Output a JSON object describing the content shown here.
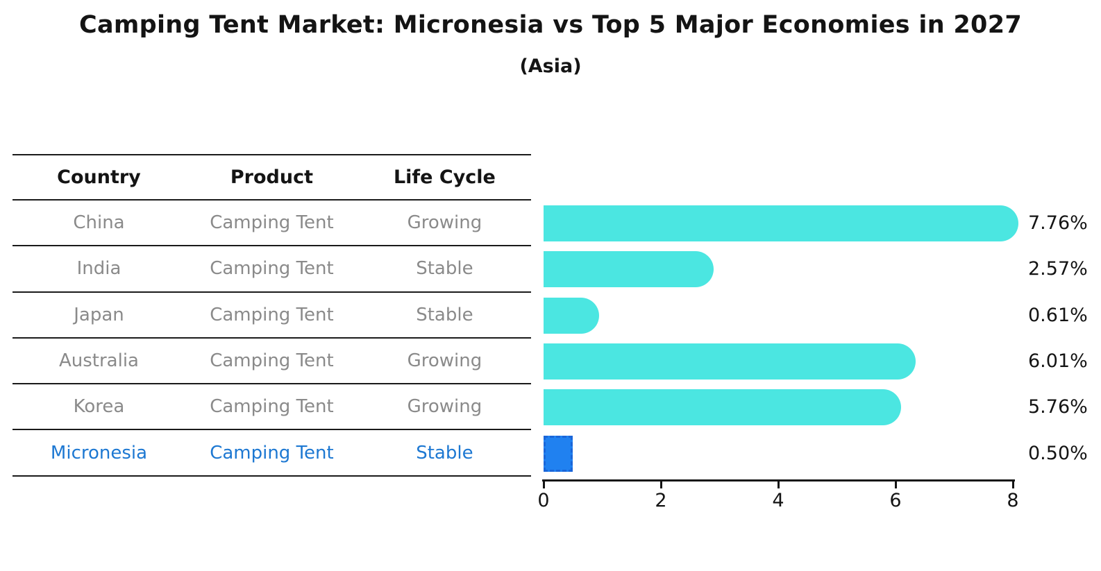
{
  "header": {
    "title": "Camping Tent Market: Micronesia vs Top 5 Major Economies in 2027",
    "subtitle": "(Asia)"
  },
  "table": {
    "columns": [
      "Country",
      "Product",
      "Life Cycle"
    ]
  },
  "chart_data": {
    "type": "bar",
    "orientation": "horizontal",
    "title": "Camping Tent Market: Micronesia vs Top 5 Major Economies in 2027",
    "subtitle": "(Asia)",
    "xlabel": "",
    "ylabel": "",
    "xlim": [
      0,
      8
    ],
    "x_ticks": [
      "0",
      "2",
      "4",
      "6",
      "8"
    ],
    "grid": false,
    "legend": false,
    "categories": [
      "China",
      "India",
      "Japan",
      "Australia",
      "Korea",
      "Micronesia"
    ],
    "values": [
      7.76,
      2.57,
      0.61,
      6.01,
      5.76,
      0.5
    ],
    "value_labels": [
      "7.76%",
      "2.57%",
      "0.61%",
      "6.01%",
      "5.76%",
      "0.50%"
    ],
    "rows": [
      {
        "country": "China",
        "product": "Camping Tent",
        "life_cycle": "Growing",
        "value": 7.76,
        "value_label": "7.76%",
        "highlight": false
      },
      {
        "country": "India",
        "product": "Camping Tent",
        "life_cycle": "Stable",
        "value": 2.57,
        "value_label": "2.57%",
        "highlight": false
      },
      {
        "country": "Japan",
        "product": "Camping Tent",
        "life_cycle": "Stable",
        "value": 0.61,
        "value_label": "0.61%",
        "highlight": false
      },
      {
        "country": "Australia",
        "product": "Camping Tent",
        "life_cycle": "Growing",
        "value": 6.01,
        "value_label": "6.01%",
        "highlight": false
      },
      {
        "country": "Korea",
        "product": "Camping Tent",
        "life_cycle": "Growing",
        "value": 5.76,
        "value_label": "5.76%",
        "highlight": false
      },
      {
        "country": "Micronesia",
        "product": "Camping Tent",
        "life_cycle": "Stable",
        "value": 0.5,
        "value_label": "0.50%",
        "highlight": true
      }
    ]
  },
  "colors": {
    "bar": "#4be6e1",
    "highlight_bar": "#2081f0",
    "highlight_border": "#1a66d9",
    "highlight_text": "#1d78d2",
    "row_text": "#8a8a8a",
    "ink": "#141414"
  }
}
